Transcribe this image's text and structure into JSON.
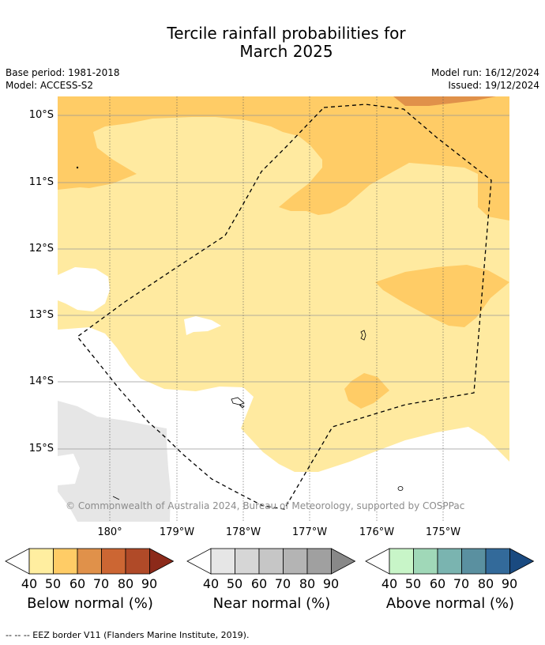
{
  "title_line1": "Tercile rainfall probabilities for",
  "title_line2": "March 2025",
  "meta": {
    "base_period": "Base period: 1981-2018",
    "model": "Model: ACCESS-S2",
    "model_run": "Model run: 16/12/2024",
    "issued": "Issued: 19/12/2024"
  },
  "lat_labels": [
    "10°S",
    "11°S",
    "12°S",
    "13°S",
    "14°S",
    "15°S"
  ],
  "lon_labels": [
    "180°",
    "179°W",
    "178°W",
    "177°W",
    "176°W",
    "175°W"
  ],
  "copyright": "© Commonwealth of Australia 2024, Bureau of Meteorology, supported by COSPPac",
  "colorbars": [
    {
      "title": "Below normal (%)",
      "ticks": [
        "40",
        "50",
        "60",
        "70",
        "80",
        "90"
      ],
      "colors": [
        "#ffeea0",
        "#ffcc66",
        "#e0914a",
        "#cc6633",
        "#b04a28",
        "#8c2a1a"
      ]
    },
    {
      "title": "Near normal (%)",
      "ticks": [
        "40",
        "50",
        "60",
        "70",
        "80",
        "90"
      ],
      "colors": [
        "#e6e6e6",
        "#d6d6d6",
        "#c6c6c6",
        "#b4b4b4",
        "#a0a0a0",
        "#888888"
      ]
    },
    {
      "title": "Above normal (%)",
      "ticks": [
        "40",
        "50",
        "60",
        "70",
        "80",
        "90"
      ],
      "colors": [
        "#c8f5c8",
        "#a0d8b8",
        "#7ab4b0",
        "#5a90a0",
        "#336a9a",
        "#1a4a80"
      ]
    }
  ],
  "legend_note": "--  --  -- EEZ border V11 (Flanders Marine Institute, 2019).",
  "map_colors": {
    "below_40_50": "#ffeaa0",
    "below_50_60": "#ffcc66",
    "below_60_70": "#e0914a",
    "near_40_50": "#e6e6e6",
    "no_signal": "#ffffff",
    "grid": "#555555",
    "eez": "#000000"
  }
}
